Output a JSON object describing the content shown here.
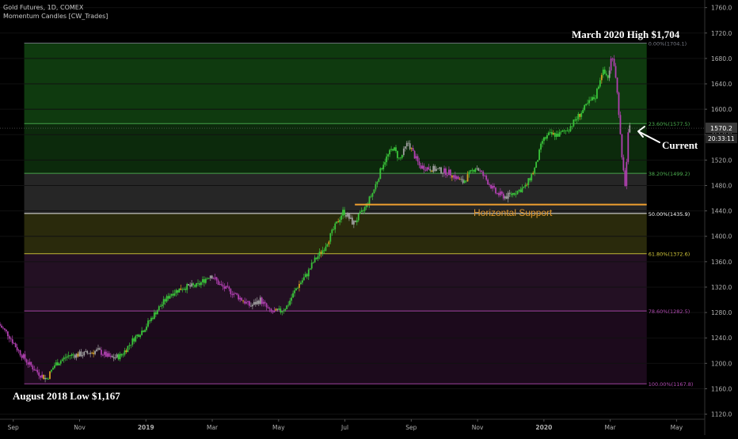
{
  "header": {
    "symbol_line": "Gold Futures, 1D, COMEX",
    "indicator_line": "Momentum Candles [CW_Trades]"
  },
  "annotations": {
    "high_label": "March 2020 High $1,704",
    "low_label": "August 2018 Low $1,167",
    "current_label": "Current",
    "support_label": "Horizontal Support"
  },
  "price_tags": {
    "last": "1570.2",
    "countdown": "20:33:11"
  },
  "chart_data": {
    "type": "line",
    "title": "",
    "xlabel": "",
    "ylabel": "",
    "ylim": [
      1112,
      1772
    ],
    "xlim_months": [
      0.6,
      21.85
    ],
    "x_ticks": [
      {
        "label": "Sep",
        "m": 1
      },
      {
        "label": "Nov",
        "m": 3
      },
      {
        "label": "2019",
        "m": 5
      },
      {
        "label": "Mar",
        "m": 7
      },
      {
        "label": "May",
        "m": 9
      },
      {
        "label": "Jul",
        "m": 11
      },
      {
        "label": "Sep",
        "m": 13
      },
      {
        "label": "Nov",
        "m": 15
      },
      {
        "label": "2020",
        "m": 17
      },
      {
        "label": "Mar",
        "m": 19
      },
      {
        "label": "May",
        "m": 21
      }
    ],
    "y_ticks": [
      1120,
      1160,
      1200,
      1240,
      1280,
      1320,
      1360,
      1400,
      1440,
      1480,
      1520,
      1560,
      1600,
      1640,
      1680,
      1720,
      1760
    ],
    "fib_levels": [
      {
        "label": "0.00%(1704.1)",
        "price": 1704.1,
        "color": "#787b86"
      },
      {
        "label": "23.60%(1577.5)",
        "price": 1577.5,
        "color": "#4caf50"
      },
      {
        "label": "38.20%(1499.2)",
        "price": 1499.2,
        "color": "#4caf50"
      },
      {
        "label": "50.00%(1435.9)",
        "price": 1435.9,
        "color": "#ffffff"
      },
      {
        "label": "61.80%(1372.6)",
        "price": 1372.6,
        "color": "#d4c93a"
      },
      {
        "label": "78.60%(1282.5)",
        "price": 1282.5,
        "color": "#b04ab0"
      },
      {
        "label": "100.00%(1167.8)",
        "price": 1167.8,
        "color": "#b04ab0"
      }
    ],
    "fib_zones": [
      {
        "from": 1704.1,
        "to": 1577.5,
        "color": "#0f3a0f"
      },
      {
        "from": 1577.5,
        "to": 1499.2,
        "color": "#0c2a0c"
      },
      {
        "from": 1499.2,
        "to": 1435.9,
        "color": "#262626"
      },
      {
        "from": 1435.9,
        "to": 1372.6,
        "color": "#2a2a0c"
      },
      {
        "from": 1372.6,
        "to": 1282.5,
        "color": "#231023"
      },
      {
        "from": 1282.5,
        "to": 1167.8,
        "color": "#1c0a1c"
      }
    ],
    "support": {
      "price": 1450,
      "from_m": 11.3,
      "to_m": 20.1,
      "color": "#f0a030"
    },
    "last_price": 1570.2,
    "colors": {
      "up": "#3ac43a",
      "down": "#b040b0",
      "neutral": "#a0a0a0",
      "accent": "#d4a020"
    },
    "series": [
      {
        "points": [
          [
            0.6,
            1262
          ],
          [
            0.9,
            1245
          ],
          [
            1.2,
            1220
          ],
          [
            1.5,
            1200
          ],
          [
            1.8,
            1185
          ],
          [
            2.05,
            1175
          ],
          [
            2.3,
            1198
          ],
          [
            2.7,
            1212
          ],
          [
            3.2,
            1215
          ],
          [
            3.6,
            1220
          ],
          [
            4.0,
            1208
          ],
          [
            4.3,
            1212
          ],
          [
            4.7,
            1240
          ],
          [
            5.0,
            1255
          ],
          [
            5.4,
            1285
          ],
          [
            5.8,
            1310
          ],
          [
            6.2,
            1320
          ],
          [
            6.6,
            1322
          ],
          [
            7.0,
            1340
          ],
          [
            7.3,
            1322
          ],
          [
            7.7,
            1310
          ],
          [
            8.2,
            1290
          ],
          [
            8.5,
            1300
          ],
          [
            8.8,
            1280
          ],
          [
            9.1,
            1282
          ],
          [
            9.3,
            1290
          ],
          [
            9.6,
            1320
          ],
          [
            9.9,
            1340
          ],
          [
            10.1,
            1360
          ],
          [
            10.4,
            1380
          ],
          [
            10.7,
            1410
          ],
          [
            11.0,
            1440
          ],
          [
            11.3,
            1420
          ],
          [
            11.6,
            1440
          ],
          [
            11.9,
            1470
          ],
          [
            12.2,
            1515
          ],
          [
            12.5,
            1540
          ],
          [
            12.7,
            1520
          ],
          [
            12.95,
            1548
          ],
          [
            13.3,
            1510
          ],
          [
            13.8,
            1505
          ],
          [
            14.2,
            1500
          ],
          [
            14.6,
            1485
          ],
          [
            15.0,
            1510
          ],
          [
            15.3,
            1490
          ],
          [
            15.6,
            1468
          ],
          [
            15.9,
            1462
          ],
          [
            16.2,
            1470
          ],
          [
            16.5,
            1478
          ],
          [
            16.8,
            1510
          ],
          [
            17.0,
            1550
          ],
          [
            17.2,
            1560
          ],
          [
            17.5,
            1560
          ],
          [
            17.8,
            1570
          ],
          [
            18.1,
            1590
          ],
          [
            18.4,
            1610
          ],
          [
            18.6,
            1620
          ],
          [
            18.8,
            1660
          ],
          [
            19.0,
            1650
          ],
          [
            19.1,
            1690
          ],
          [
            19.2,
            1660
          ],
          [
            19.3,
            1600
          ],
          [
            19.4,
            1520
          ],
          [
            19.5,
            1480
          ],
          [
            19.6,
            1570
          ]
        ]
      }
    ]
  }
}
